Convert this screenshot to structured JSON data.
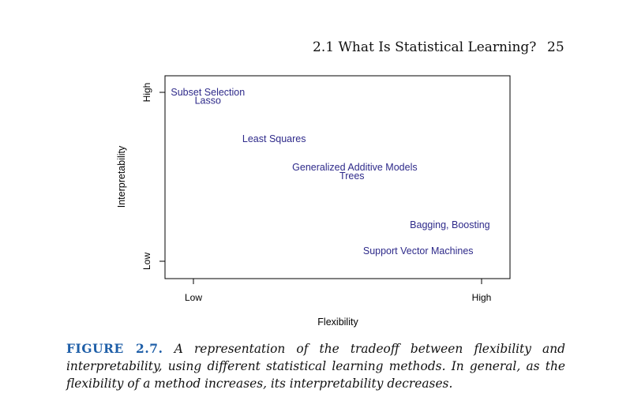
{
  "header": {
    "section_title": "2.1 What Is Statistical Learning?",
    "page_number": "25"
  },
  "colors": {
    "method_label": "#2e2a8a",
    "caption_label": "#1f5fa8"
  },
  "chart_data": {
    "type": "scatter",
    "title": "",
    "xlabel": "Flexibility",
    "ylabel": "Interpretability",
    "x_ticks": [
      "Low",
      "High"
    ],
    "y_ticks": [
      "Low",
      "High"
    ],
    "xlim": [
      -0.1,
      1.1
    ],
    "ylim": [
      -0.1,
      1.1
    ],
    "grid": false,
    "points": [
      {
        "label": "Subset Selection",
        "x": 0.05,
        "y": 1.0
      },
      {
        "label": "Lasso",
        "x": 0.05,
        "y": 0.95
      },
      {
        "label": "Least Squares",
        "x": 0.28,
        "y": 0.725
      },
      {
        "label": "Generalized Additive Models",
        "x": 0.56,
        "y": 0.555
      },
      {
        "label": "Trees",
        "x": 0.55,
        "y": 0.505
      },
      {
        "label": "Bagging, Boosting",
        "x": 0.89,
        "y": 0.215
      },
      {
        "label": "Support Vector Machines",
        "x": 0.78,
        "y": 0.06
      }
    ]
  },
  "caption": {
    "label": "FIGURE 2.7.",
    "text": "A representation of the tradeoff between flexibility and interpretability, using different statistical learning methods. In general, as the flexibility of a method increases, its interpretability decreases."
  }
}
